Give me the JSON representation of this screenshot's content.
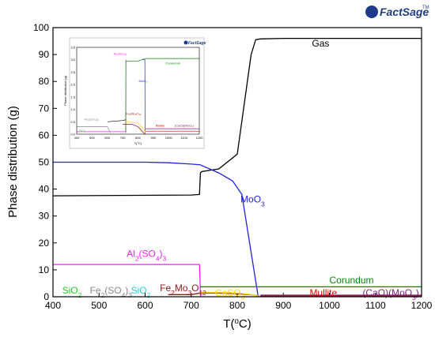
{
  "logo": {
    "name": "FactSage",
    "trademark": "TM"
  },
  "chart_data": {
    "type": "line",
    "title": "",
    "xlabel": "T(°C)",
    "ylabel": "Phase distribution (g)",
    "xlim": [
      400,
      1200
    ],
    "ylim": [
      0,
      100
    ],
    "xticks": [
      400,
      500,
      600,
      700,
      800,
      900,
      1000,
      1100,
      1200
    ],
    "yticks": [
      0,
      10,
      20,
      30,
      40,
      50,
      60,
      70,
      80,
      90,
      100
    ],
    "grid": false,
    "series": [
      {
        "name": "Gas",
        "color": "#000000",
        "x": [
          400,
          700,
          718,
          720,
          723,
          760,
          800,
          830,
          840,
          850,
          900,
          1000,
          1100,
          1200
        ],
        "y": [
          37.5,
          37.8,
          38,
          46,
          46.5,
          47.5,
          53,
          90,
          95.5,
          95.8,
          96,
          96,
          96,
          96
        ]
      },
      {
        "name": "MoO3",
        "color": "#2222dd",
        "x": [
          400,
          600,
          650,
          700,
          720,
          760,
          790,
          810,
          845,
          850
        ],
        "y": [
          50,
          50,
          49.8,
          49.3,
          49,
          46,
          43,
          38,
          0.5,
          0
        ]
      },
      {
        "name": "Al2(SO4)3",
        "color": "#ee22ee",
        "x": [
          400,
          600,
          700,
          718,
          720,
          721
        ],
        "y": [
          12,
          12,
          12,
          12,
          2,
          0
        ]
      },
      {
        "name": "Corundum",
        "color": "#008800",
        "x": [
          720,
          800,
          900,
          1000,
          1100,
          1200
        ],
        "y": [
          3.7,
          3.7,
          3.7,
          3.7,
          3.7,
          3.7
        ]
      },
      {
        "name": "Fe2Mo3O12",
        "color": "#8b1a1a",
        "x": [
          650,
          700,
          720,
          760,
          800,
          840,
          845
        ],
        "y": [
          0.8,
          0.8,
          1.4,
          1.4,
          1.1,
          0.6,
          0
        ]
      },
      {
        "name": "CaSO4",
        "color": "#ffd700",
        "x": [
          720,
          760,
          800,
          840,
          850
        ],
        "y": [
          1.6,
          1.6,
          1.4,
          0.6,
          0
        ]
      },
      {
        "name": "Mullite",
        "color": "#dd0000",
        "x": [
          850,
          900,
          1000,
          1100,
          1200
        ],
        "y": [
          0.3,
          0.3,
          0.3,
          0.3,
          0.3
        ]
      },
      {
        "name": "(CaO)(MoO3)",
        "color": "#7a1e7a",
        "x": [
          850,
          900,
          1000,
          1100,
          1200
        ],
        "y": [
          0.6,
          0.6,
          0.6,
          0.6,
          0.6
        ]
      }
    ],
    "annotations": [
      {
        "id": "gas",
        "text": "Gas",
        "x": 962,
        "y": 93,
        "color": "#000000"
      },
      {
        "id": "moo3",
        "pre": "MoO",
        "sub": "3",
        "post": "",
        "x": 807,
        "y": 35,
        "color": "#2222dd"
      },
      {
        "id": "al2so43",
        "pre": "Al",
        "sub": "2",
        "mid": "(SO",
        "sub2": "4",
        "post": ")",
        "sub3": "3",
        "x": 560,
        "y": 14.8,
        "color": "#ee22ee"
      },
      {
        "id": "corundum",
        "text": "Corundum",
        "x": 1000,
        "y": 5,
        "color": "#008800"
      },
      {
        "id": "fe2mo3o12",
        "pre": "Fe",
        "sub": "2",
        "mid": "Mo",
        "sub2": "3",
        "post": "O",
        "sub3": "12",
        "x": 632,
        "y": 2,
        "color": "#8b1a1a"
      },
      {
        "id": "sio2",
        "pre": "SiO",
        "sub": "2",
        "post": "",
        "x": 420,
        "y": 1.1,
        "color": "#22cc22"
      },
      {
        "id": "fe2so43",
        "pre": "Fe",
        "sub": "2",
        "mid": "(SO",
        "sub2": "4",
        "post": ")",
        "sub3": "3",
        "x": 480,
        "y": 1.1,
        "color": "#888888"
      },
      {
        "id": "sio3",
        "pre": "SiO",
        "sub": "2",
        "post": "",
        "x": 569,
        "y": 1.1,
        "color": "#22ccdd"
      },
      {
        "id": "caso4",
        "pre": "CaSO",
        "sub": "4",
        "post": "",
        "x": 752,
        "y": 0.3,
        "color": "#ffd700"
      },
      {
        "id": "mullite",
        "text": "Mullite",
        "x": 957,
        "y": 0.3,
        "color": "#dd0000"
      },
      {
        "id": "camoo",
        "pre": "(CaO)(MoO",
        "sub": "3",
        "post": ")",
        "x": 1072,
        "y": 0.3,
        "color": "#7a1e7a"
      }
    ],
    "inset": {
      "xlabel": "T(°C)",
      "ylabel": "Phase distribution (g)",
      "xlim": [
        400,
        1200
      ],
      "ylim": [
        0,
        3.5
      ],
      "xticks": [
        400,
        500,
        600,
        700,
        800,
        900,
        1000,
        1100,
        1200
      ],
      "yticks": [
        0.0,
        0.5,
        1.0,
        1.5,
        2.0,
        2.5,
        3.0,
        3.5
      ],
      "series": [
        {
          "color": "#ee22ee",
          "x": [
            400,
            700,
            720,
            721
          ],
          "y": [
            0.1,
            0.1,
            0.1,
            3.0
          ]
        },
        {
          "color": "#008800",
          "x": [
            720,
            721,
            800,
            850,
            1200
          ],
          "y": [
            0.05,
            2.95,
            2.95,
            3.05,
            3.05
          ]
        },
        {
          "color": "#2222dd",
          "x": [
            830,
            845,
            846
          ],
          "y": [
            3.0,
            3.0,
            0
          ]
        },
        {
          "color": "#000000",
          "x": [
            600,
            700,
            718,
            720
          ],
          "y": [
            0.5,
            0.55,
            0.58,
            0.58
          ]
        },
        {
          "color": "#888888",
          "x": [
            400,
            600,
            620
          ],
          "y": [
            0.3,
            0.3,
            0.05
          ]
        },
        {
          "color": "#ffd700",
          "x": [
            720,
            800,
            840,
            850
          ],
          "y": [
            0.5,
            0.45,
            0.2,
            0
          ]
        },
        {
          "color": "#8b1a1a",
          "x": [
            700,
            760,
            800,
            845
          ],
          "y": [
            0.4,
            0.4,
            0.3,
            0
          ]
        },
        {
          "color": "#7a1e7a",
          "x": [
            850,
            1200
          ],
          "y": [
            0.22,
            0.22
          ]
        },
        {
          "color": "#dd0000",
          "x": [
            850,
            1200
          ],
          "y": [
            0.12,
            0.12
          ]
        }
      ],
      "labels": [
        {
          "text": "Corundum",
          "x": 980,
          "y": 2.82,
          "color": "#008800"
        },
        {
          "text": "MoO₃",
          "x": 805,
          "y": 2.1,
          "color": "#2222dd"
        },
        {
          "text": "Al₂(SO₄)₃",
          "x": 640,
          "y": 3.2,
          "color": "#ee22ee"
        },
        {
          "text": "Fe₂(SO₄)₃",
          "x": 450,
          "y": 0.55,
          "color": "#888888"
        },
        {
          "text": "Fe₂Mo₃O₁₂",
          "x": 720,
          "y": 0.78,
          "color": "#8b1a1a"
        },
        {
          "text": "Mullite",
          "x": 915,
          "y": 0.3,
          "color": "#dd0000"
        },
        {
          "text": "(CaO)(MoO₃)",
          "x": 1040,
          "y": 0.3,
          "color": "#7a1e7a"
        },
        {
          "text": "SiO₂",
          "x": 415,
          "y": 0.1,
          "color": "#22cc22"
        }
      ]
    }
  }
}
